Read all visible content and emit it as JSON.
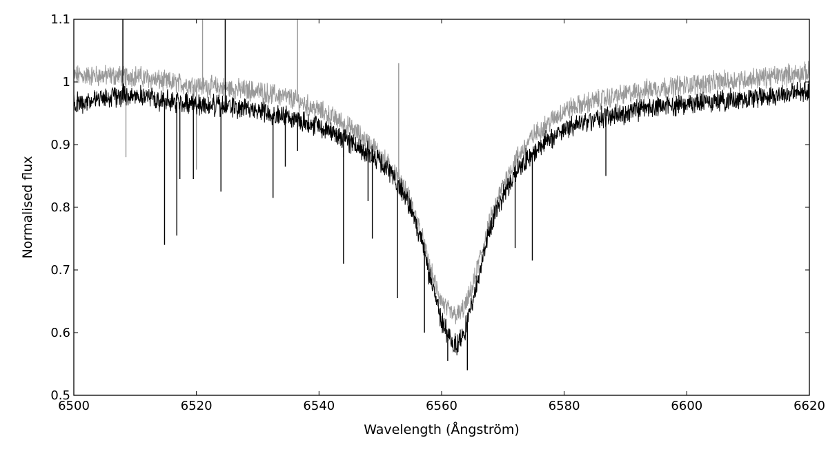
{
  "chart_data": {
    "type": "line",
    "xlabel": "Wavelength (Ångström)",
    "ylabel": "Normalised flux",
    "xlim": [
      6500,
      6620
    ],
    "ylim": [
      0.5,
      1.1
    ],
    "grid": false,
    "legend": "none",
    "x_ticks": [
      6500,
      6520,
      6540,
      6560,
      6580,
      6600,
      6620
    ],
    "x_tick_labels": [
      "6500",
      "6520",
      "6540",
      "6560",
      "6580",
      "6600",
      "6620"
    ],
    "y_ticks": [
      0.5,
      0.6,
      0.7,
      0.8,
      0.9,
      1.0,
      1.1
    ],
    "y_tick_labels": [
      "0.5",
      "0.6",
      "0.7",
      "0.8",
      "0.9",
      "1",
      "1.1"
    ],
    "series": [
      {
        "color": "#999999",
        "x": [
          6500,
          6505,
          6510,
          6515,
          6520,
          6525,
          6530,
          6535,
          6540,
          6543,
          6546,
          6549,
          6552,
          6554,
          6556,
          6557,
          6558,
          6559,
          6560,
          6561,
          6562,
          6563,
          6564,
          6565,
          6566,
          6567,
          6568,
          6570,
          6572,
          6575,
          6580,
          6585,
          6590,
          6595,
          6600,
          6605,
          6610,
          6615,
          6620
        ],
        "values": [
          1.01,
          1.01,
          1.01,
          1.0,
          0.995,
          0.99,
          0.985,
          0.975,
          0.955,
          0.94,
          0.92,
          0.895,
          0.86,
          0.83,
          0.78,
          0.745,
          0.705,
          0.675,
          0.65,
          0.635,
          0.628,
          0.63,
          0.645,
          0.67,
          0.71,
          0.745,
          0.78,
          0.835,
          0.875,
          0.915,
          0.955,
          0.97,
          0.98,
          0.99,
          0.995,
          1.0,
          1.005,
          1.01,
          1.015
        ],
        "spikes": [
          [
            6508,
            1.1
          ],
          [
            6521,
            1.1
          ],
          [
            6524.7,
            1.1
          ],
          [
            6536.5,
            1.1
          ],
          [
            6553,
            1.03
          ],
          [
            6508.5,
            0.88
          ],
          [
            6520,
            0.86
          ],
          [
            6544,
            0.88
          ]
        ]
      },
      {
        "color": "#000000",
        "x": [
          6500,
          6505,
          6510,
          6515,
          6520,
          6525,
          6530,
          6535,
          6540,
          6543,
          6546,
          6549,
          6552,
          6554,
          6556,
          6557,
          6558,
          6559,
          6560,
          6561,
          6562,
          6563,
          6564,
          6565,
          6566,
          6567,
          6568,
          6570,
          6572,
          6575,
          6580,
          6585,
          6590,
          6595,
          6600,
          6605,
          6610,
          6615,
          6620
        ],
        "values": [
          0.965,
          0.975,
          0.98,
          0.97,
          0.965,
          0.96,
          0.955,
          0.945,
          0.93,
          0.915,
          0.9,
          0.88,
          0.85,
          0.82,
          0.77,
          0.735,
          0.69,
          0.655,
          0.62,
          0.595,
          0.58,
          0.585,
          0.61,
          0.645,
          0.69,
          0.73,
          0.77,
          0.82,
          0.855,
          0.89,
          0.925,
          0.94,
          0.95,
          0.96,
          0.965,
          0.97,
          0.975,
          0.98,
          0.985
        ],
        "spikes": [
          [
            6508,
            1.1
          ],
          [
            6524.7,
            1.1
          ],
          [
            6514.8,
            0.74
          ],
          [
            6516.8,
            0.755
          ],
          [
            6517.3,
            0.845
          ],
          [
            6519.5,
            0.845
          ],
          [
            6524,
            0.825
          ],
          [
            6532.5,
            0.815
          ],
          [
            6534.5,
            0.865
          ],
          [
            6536.5,
            0.89
          ],
          [
            6544,
            0.71
          ],
          [
            6548,
            0.81
          ],
          [
            6548.7,
            0.75
          ],
          [
            6552.8,
            0.655
          ],
          [
            6557.2,
            0.6
          ],
          [
            6561,
            0.555
          ],
          [
            6564.2,
            0.54
          ],
          [
            6572,
            0.735
          ],
          [
            6574.8,
            0.715
          ],
          [
            6586.8,
            0.85
          ]
        ]
      }
    ]
  }
}
